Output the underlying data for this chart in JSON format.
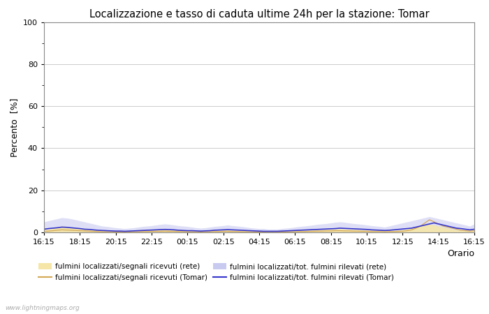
{
  "title": "Localizzazione e tasso di caduta ultime 24h per la stazione: Tomar",
  "ylabel": "Percento  [%]",
  "xlabel": "Orario",
  "ylim": [
    0,
    100
  ],
  "yticks_major": [
    0,
    20,
    40,
    60,
    80,
    100
  ],
  "yticks_minor": [
    10,
    30,
    50,
    70,
    90
  ],
  "xtick_labels": [
    "16:15",
    "18:15",
    "20:15",
    "22:15",
    "00:15",
    "02:15",
    "04:15",
    "06:15",
    "08:15",
    "10:15",
    "12:15",
    "14:15",
    "16:15"
  ],
  "background_color": "#ffffff",
  "plot_bg_color": "#ffffff",
  "watermark": "www.lightningmaps.org",
  "n_points": 97,
  "fill_rete_signals": [
    1.2,
    1.5,
    2.0,
    2.5,
    3.0,
    2.8,
    2.5,
    2.2,
    2.0,
    1.8,
    1.5,
    1.2,
    1.0,
    0.8,
    0.7,
    0.6,
    0.5,
    0.4,
    0.4,
    0.5,
    0.6,
    0.7,
    0.8,
    0.9,
    1.0,
    1.1,
    1.2,
    1.3,
    1.2,
    1.1,
    1.0,
    0.9,
    0.8,
    0.7,
    0.6,
    0.5,
    0.6,
    0.7,
    0.8,
    0.9,
    1.0,
    1.1,
    1.0,
    0.9,
    0.8,
    0.7,
    0.6,
    0.5,
    0.4,
    0.4,
    0.3,
    0.3,
    0.3,
    0.4,
    0.5,
    0.6,
    0.7,
    0.8,
    0.9,
    1.0,
    1.1,
    1.2,
    1.3,
    1.4,
    1.5,
    1.6,
    1.7,
    1.6,
    1.5,
    1.4,
    1.3,
    1.2,
    1.1,
    1.0,
    0.9,
    0.8,
    0.7,
    0.8,
    0.9,
    1.0,
    1.2,
    1.5,
    2.0,
    2.5,
    3.0,
    3.5,
    4.0,
    3.5,
    3.0,
    2.5,
    2.0,
    1.5,
    1.2,
    1.0,
    0.9,
    0.8,
    1.2
  ],
  "line_tomar_signals": [
    0.5,
    0.6,
    0.8,
    1.0,
    1.2,
    1.1,
    1.0,
    0.9,
    0.8,
    0.7,
    0.6,
    0.5,
    0.4,
    0.3,
    0.3,
    0.3,
    0.2,
    0.2,
    0.2,
    0.2,
    0.3,
    0.3,
    0.4,
    0.4,
    0.5,
    0.5,
    0.5,
    0.6,
    0.5,
    0.5,
    0.4,
    0.4,
    0.3,
    0.3,
    0.3,
    0.2,
    0.3,
    0.3,
    0.4,
    0.4,
    0.5,
    0.5,
    0.4,
    0.4,
    0.3,
    0.3,
    0.3,
    0.2,
    0.2,
    0.2,
    0.1,
    0.1,
    0.1,
    0.2,
    0.2,
    0.3,
    0.3,
    0.4,
    0.4,
    0.5,
    0.5,
    0.6,
    0.6,
    0.7,
    0.7,
    0.8,
    0.8,
    0.7,
    0.7,
    0.6,
    0.6,
    0.5,
    0.5,
    0.4,
    0.4,
    0.4,
    0.3,
    0.4,
    0.4,
    0.5,
    0.6,
    0.8,
    1.2,
    2.0,
    3.0,
    4.5,
    6.0,
    5.0,
    4.0,
    3.0,
    2.5,
    2.0,
    1.5,
    1.0,
    0.8,
    0.6,
    0.8
  ],
  "fill_rete_tot": [
    5.0,
    5.5,
    6.0,
    6.5,
    7.0,
    6.8,
    6.5,
    6.0,
    5.5,
    5.0,
    4.5,
    4.0,
    3.5,
    3.0,
    2.8,
    2.5,
    2.2,
    2.0,
    1.8,
    2.0,
    2.2,
    2.5,
    2.8,
    3.0,
    3.2,
    3.5,
    3.8,
    4.0,
    3.8,
    3.5,
    3.2,
    3.0,
    2.8,
    2.5,
    2.2,
    2.0,
    2.2,
    2.5,
    2.8,
    3.0,
    3.2,
    3.5,
    3.2,
    3.0,
    2.8,
    2.5,
    2.2,
    2.0,
    1.8,
    1.8,
    1.5,
    1.5,
    1.5,
    1.8,
    2.0,
    2.2,
    2.5,
    2.8,
    3.0,
    3.2,
    3.5,
    3.8,
    4.0,
    4.2,
    4.5,
    4.8,
    5.0,
    4.8,
    4.5,
    4.2,
    4.0,
    3.8,
    3.5,
    3.2,
    3.0,
    2.8,
    2.5,
    3.0,
    3.5,
    4.0,
    4.5,
    5.0,
    5.5,
    6.0,
    6.5,
    7.0,
    7.5,
    7.0,
    6.5,
    6.0,
    5.5,
    5.0,
    4.5,
    4.0,
    3.5,
    3.0,
    4.0
  ],
  "line_tomar_tot": [
    1.5,
    1.8,
    2.0,
    2.2,
    2.5,
    2.4,
    2.2,
    2.0,
    1.8,
    1.5,
    1.4,
    1.2,
    1.0,
    0.9,
    0.8,
    0.7,
    0.6,
    0.6,
    0.5,
    0.6,
    0.7,
    0.8,
    0.9,
    1.0,
    1.1,
    1.2,
    1.3,
    1.4,
    1.3,
    1.2,
    1.0,
    0.9,
    0.8,
    0.8,
    0.7,
    0.6,
    0.7,
    0.8,
    1.0,
    1.1,
    1.2,
    1.3,
    1.2,
    1.1,
    1.0,
    0.9,
    0.8,
    0.7,
    0.6,
    0.5,
    0.5,
    0.5,
    0.5,
    0.6,
    0.7,
    0.8,
    0.9,
    1.0,
    1.1,
    1.2,
    1.3,
    1.4,
    1.5,
    1.6,
    1.7,
    1.8,
    2.0,
    1.9,
    1.8,
    1.7,
    1.6,
    1.5,
    1.4,
    1.2,
    1.1,
    1.0,
    0.9,
    1.0,
    1.2,
    1.4,
    1.6,
    1.8,
    2.0,
    2.5,
    3.0,
    3.5,
    4.0,
    4.5,
    4.0,
    3.5,
    3.0,
    2.5,
    2.0,
    1.8,
    1.5,
    1.2,
    1.5
  ],
  "fill_rete_signals_color": "#f5e6a8",
  "fill_rete_tot_color": "#c8caf0",
  "line_tomar_signals_color": "#d4a855",
  "line_tomar_tot_color": "#3535cc",
  "grid_color": "#cccccc",
  "spine_color": "#888888",
  "title_fontsize": 10.5,
  "label_fontsize": 9,
  "tick_fontsize": 8,
  "legend_fontsize": 7.5
}
